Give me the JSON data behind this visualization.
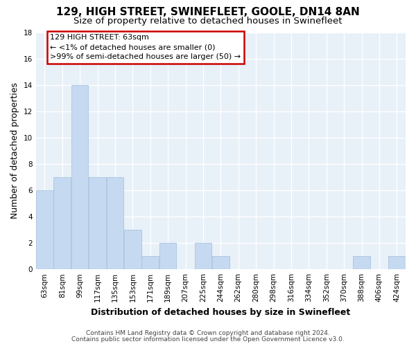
{
  "title": "129, HIGH STREET, SWINEFLEET, GOOLE, DN14 8AN",
  "subtitle": "Size of property relative to detached houses in Swinefleet",
  "xlabel": "Distribution of detached houses by size in Swinefleet",
  "ylabel": "Number of detached properties",
  "bar_color": "#c5d9f0",
  "bar_edge_color": "#aac4e0",
  "categories": [
    "63sqm",
    "81sqm",
    "99sqm",
    "117sqm",
    "135sqm",
    "153sqm",
    "171sqm",
    "189sqm",
    "207sqm",
    "225sqm",
    "244sqm",
    "262sqm",
    "280sqm",
    "298sqm",
    "316sqm",
    "334sqm",
    "352sqm",
    "370sqm",
    "388sqm",
    "406sqm",
    "424sqm"
  ],
  "values": [
    6,
    7,
    14,
    7,
    7,
    3,
    1,
    2,
    0,
    2,
    1,
    0,
    0,
    0,
    0,
    0,
    0,
    0,
    1,
    0,
    1
  ],
  "ylim": [
    0,
    18
  ],
  "yticks": [
    0,
    2,
    4,
    6,
    8,
    10,
    12,
    14,
    16,
    18
  ],
  "annotation_text": "129 HIGH STREET: 63sqm\n← <1% of detached houses are smaller (0)\n>99% of semi-detached houses are larger (50) →",
  "annotation_box_color": "#ffffff",
  "annotation_edge_color": "#cc0000",
  "footnote1": "Contains HM Land Registry data © Crown copyright and database right 2024.",
  "footnote2": "Contains public sector information licensed under the Open Government Licence v3.0.",
  "background_color": "#ffffff",
  "plot_bg_color": "#e8f0f8",
  "grid_color": "#ffffff",
  "title_fontsize": 11,
  "subtitle_fontsize": 9.5,
  "tick_fontsize": 7.5,
  "ylabel_fontsize": 9,
  "xlabel_fontsize": 9,
  "footnote_fontsize": 6.5,
  "annotation_fontsize": 8
}
